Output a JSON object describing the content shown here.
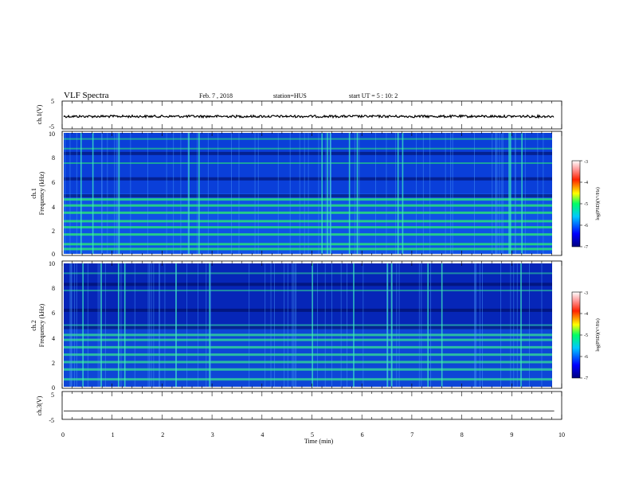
{
  "header": {
    "title": "VLF Spectra",
    "date": "Feb. 7 , 2018",
    "station": "station=HUS",
    "start": "start  UT =  5 : 10: 2"
  },
  "chart_data": {
    "type": "heatmap",
    "xlabel": "Time  (min)",
    "xlim": [
      0,
      10
    ],
    "x_ticks": [
      "0",
      "1",
      "2",
      "3",
      "4",
      "5",
      "6",
      "7",
      "8",
      "9",
      "10"
    ],
    "panels": [
      {
        "id": "ch1_waveform",
        "ylabel": "ch.1(V)",
        "ylim": [
          -5,
          5
        ],
        "y_ticks": [
          "5",
          "-5"
        ],
        "trace_level": 0,
        "data_extent_min": [
          0,
          9.85
        ]
      },
      {
        "id": "ch1_spectrogram",
        "ylabel_line1": "ch.1",
        "ylabel_line2": "Frequency (kHz)",
        "ylim_khz": [
          0,
          10
        ],
        "y_ticks": [
          "0",
          "2",
          "4",
          "6",
          "8",
          "10"
        ],
        "bands_khz": [
          0.4,
          0.8,
          1.6,
          2.2,
          2.7,
          3.4,
          4.0,
          4.5,
          7.5,
          8.7,
          9.5
        ],
        "colorbar": {
          "label": "log(PSD)(V²/Hz)",
          "ticks": [
            "-3",
            "-4",
            "-5",
            "-6",
            "-7"
          ],
          "range": [
            -7,
            -3
          ]
        }
      },
      {
        "id": "ch2_spectrogram",
        "ylabel_line1": "ch.2",
        "ylabel_line2": "Frequency (kHz)",
        "ylim_khz": [
          0,
          10
        ],
        "y_ticks": [
          "0",
          "2",
          "4",
          "6",
          "8",
          "10"
        ],
        "bands_khz": [
          0.6,
          1.4,
          2.0,
          2.6,
          3.2,
          3.8,
          4.2,
          5.0,
          7.8,
          9.2
        ],
        "colorbar": {
          "label": "log(PSD)(V²/Hz)",
          "ticks": [
            "-3",
            "-4",
            "-5",
            "-6",
            "-7"
          ],
          "range": [
            -7,
            -3
          ]
        }
      },
      {
        "id": "ch3_waveform",
        "ylabel": "ch.3(V)",
        "ylim": [
          -5,
          5
        ],
        "y_ticks": [
          "5",
          "-5"
        ],
        "trace_level": -2,
        "data_extent_min": [
          0,
          9.85
        ]
      }
    ]
  }
}
